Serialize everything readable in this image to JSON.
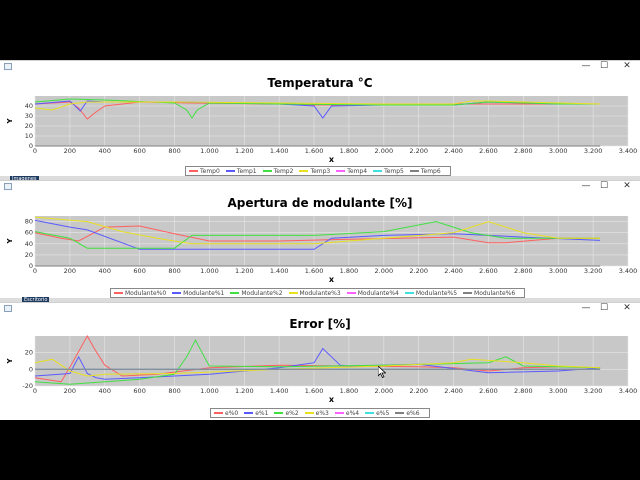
{
  "windows": [
    {
      "title": "Temperatura °C"
    },
    {
      "title": "Apertura de modulante [%]"
    },
    {
      "title": "Error [%]"
    }
  ],
  "window_buttons": {
    "minimize": "—",
    "maximize": "☐",
    "close": "✕"
  },
  "taskbar": {
    "label1": "Imagenes",
    "label2": "Escritorio"
  },
  "chart_data": [
    {
      "type": "line",
      "title": "Temperatura °C",
      "xlabel": "x",
      "ylabel": "Y",
      "xlim": [
        0,
        3400
      ],
      "ylim": [
        0,
        50
      ],
      "xticks": [
        "0",
        "200",
        "400",
        "600",
        "800",
        "1.000",
        "1.200",
        "1.400",
        "1.600",
        "1.800",
        "2.000",
        "2.200",
        "2.400",
        "2.600",
        "2.800",
        "3.000",
        "3.200",
        "3.400"
      ],
      "yticks": [
        "0",
        "10",
        "20",
        "30",
        "40"
      ],
      "grid": true,
      "legend_position": "bottom",
      "series": [
        {
          "name": "Temp0",
          "color": "#ff6060",
          "x": [
            0,
            200,
            250,
            300,
            350,
            400,
            600,
            900,
            1400,
            1600,
            2000,
            2400,
            2600,
            3000,
            3240
          ],
          "y": [
            42,
            44,
            38,
            27,
            34,
            40,
            44,
            43,
            42,
            41,
            41,
            42,
            42,
            42,
            42
          ]
        },
        {
          "name": "Temp1",
          "color": "#5a5aff",
          "x": [
            0,
            200,
            260,
            300,
            400,
            800,
            1400,
            1600,
            1650,
            1700,
            2000,
            2400,
            2600,
            3000,
            3240
          ],
          "y": [
            42,
            45,
            35,
            45,
            44,
            44,
            42,
            40,
            28,
            40,
            41,
            41,
            44,
            42,
            42
          ]
        },
        {
          "name": "Temp2",
          "color": "#40e040",
          "x": [
            0,
            200,
            400,
            800,
            870,
            900,
            930,
            1000,
            1400,
            2000,
            2400,
            2600,
            3000,
            3240
          ],
          "y": [
            44,
            47,
            46,
            43,
            36,
            28,
            36,
            43,
            42,
            41,
            41,
            44,
            42,
            42
          ]
        },
        {
          "name": "Temp3",
          "color": "#e8e020",
          "x": [
            0,
            100,
            200,
            300,
            400,
            800,
            1400,
            2000,
            2400,
            2500,
            2600,
            3000,
            3240
          ],
          "y": [
            38,
            36,
            42,
            44,
            44,
            44,
            43,
            42,
            42,
            45,
            45,
            43,
            42
          ]
        },
        {
          "name": "Temp4",
          "color": "#ff60ff",
          "x": [
            0,
            3240
          ],
          "y": [
            0,
            0
          ]
        },
        {
          "name": "Temp5",
          "color": "#40e0e0",
          "x": [
            0,
            3240
          ],
          "y": [
            0,
            0
          ]
        },
        {
          "name": "Temp6",
          "color": "#808080",
          "x": [
            0,
            3240
          ],
          "y": [
            0,
            0
          ]
        }
      ]
    },
    {
      "type": "line",
      "title": "Apertura de modulante [%]",
      "xlabel": "x",
      "ylabel": "Y",
      "xlim": [
        0,
        3400
      ],
      "ylim": [
        0,
        90
      ],
      "xticks": [
        "0",
        "200",
        "400",
        "600",
        "800",
        "1.000",
        "1.200",
        "1.400",
        "1.600",
        "1.800",
        "2.000",
        "2.200",
        "2.400",
        "2.600",
        "2.800",
        "3.000",
        "3.200",
        "3.400"
      ],
      "yticks": [
        "0",
        "20",
        "40",
        "60",
        "80"
      ],
      "grid": true,
      "legend_position": "bottom",
      "series": [
        {
          "name": "Modulante%0",
          "color": "#ff6060",
          "x": [
            0,
            150,
            250,
            400,
            600,
            800,
            1000,
            1400,
            1800,
            2400,
            2600,
            2700,
            3000,
            3240
          ],
          "y": [
            60,
            50,
            45,
            70,
            72,
            58,
            45,
            45,
            48,
            52,
            42,
            42,
            50,
            50
          ]
        },
        {
          "name": "Modulante%1",
          "color": "#5a5aff",
          "x": [
            0,
            200,
            300,
            600,
            700,
            1600,
            1700,
            2000,
            2400,
            2800,
            3240
          ],
          "y": [
            82,
            70,
            65,
            30,
            30,
            30,
            50,
            55,
            58,
            52,
            46
          ]
        },
        {
          "name": "Modulante%2",
          "color": "#40e040",
          "x": [
            0,
            200,
            300,
            800,
            900,
            1600,
            2000,
            2300,
            2500,
            2700,
            3240
          ],
          "y": [
            62,
            50,
            32,
            32,
            55,
            55,
            62,
            80,
            60,
            50,
            50
          ]
        },
        {
          "name": "Modulante%3",
          "color": "#e8e020",
          "x": [
            0,
            300,
            500,
            700,
            900,
            1600,
            2000,
            2400,
            2600,
            2800,
            3000,
            3240
          ],
          "y": [
            88,
            80,
            62,
            50,
            40,
            40,
            50,
            60,
            80,
            60,
            50,
            50
          ]
        },
        {
          "name": "Modulante%4",
          "color": "#ff60ff",
          "x": [
            0,
            3240
          ],
          "y": [
            0,
            0
          ]
        },
        {
          "name": "Modulante%5",
          "color": "#40e0e0",
          "x": [
            0,
            3240
          ],
          "y": [
            0,
            0
          ]
        },
        {
          "name": "Modulante%6",
          "color": "#808080",
          "x": [
            0,
            3240
          ],
          "y": [
            0,
            0
          ]
        }
      ]
    },
    {
      "type": "line",
      "title": "Error [%]",
      "xlabel": "x",
      "ylabel": "Y",
      "xlim": [
        0,
        3400
      ],
      "ylim": [
        -20,
        40
      ],
      "xticks": [
        "0",
        "200",
        "400",
        "600",
        "800",
        "1.000",
        "1.200",
        "1.400",
        "1.600",
        "1.800",
        "2.000",
        "2.200",
        "2.400",
        "2.600",
        "2.800",
        "3.000",
        "3.200",
        "3.400"
      ],
      "yticks": [
        "-20",
        "0",
        "20"
      ],
      "grid": true,
      "legend_position": "bottom",
      "series": [
        {
          "name": "e%0",
          "color": "#ff6060",
          "x": [
            0,
            150,
            220,
            260,
            300,
            340,
            400,
            500,
            700,
            1000,
            1400,
            1800,
            2200,
            2400,
            2600,
            2800,
            3000,
            3240
          ],
          "y": [
            -10,
            -15,
            10,
            25,
            40,
            25,
            5,
            -8,
            -6,
            2,
            5,
            4,
            3,
            2,
            -2,
            2,
            3,
            2
          ]
        },
        {
          "name": "e%1",
          "color": "#5a5aff",
          "x": [
            0,
            200,
            250,
            300,
            350,
            400,
            600,
            1000,
            1400,
            1600,
            1650,
            1700,
            1750,
            1800,
            2200,
            2600,
            3000,
            3240
          ],
          "y": [
            -8,
            -5,
            15,
            -5,
            -10,
            -12,
            -10,
            -6,
            2,
            8,
            25,
            15,
            5,
            4,
            6,
            -4,
            -2,
            2
          ]
        },
        {
          "name": "e%2",
          "color": "#40e040",
          "x": [
            0,
            200,
            600,
            800,
            870,
            920,
            970,
            1000,
            1400,
            2000,
            2600,
            2700,
            2800,
            3240
          ],
          "y": [
            -15,
            -18,
            -12,
            -6,
            15,
            35,
            15,
            4,
            3,
            5,
            8,
            15,
            4,
            2
          ]
        },
        {
          "name": "e%3",
          "color": "#e8e020",
          "x": [
            0,
            100,
            200,
            300,
            400,
            800,
            1400,
            2000,
            2400,
            2500,
            2800,
            3000,
            3240
          ],
          "y": [
            8,
            12,
            -2,
            -8,
            -6,
            -5,
            0,
            4,
            8,
            12,
            8,
            4,
            2
          ]
        },
        {
          "name": "e%4",
          "color": "#ff60ff",
          "x": [
            0,
            3240
          ],
          "y": [
            0,
            0
          ]
        },
        {
          "name": "e%5",
          "color": "#40e0e0",
          "x": [
            0,
            3240
          ],
          "y": [
            0,
            0
          ]
        },
        {
          "name": "e%6",
          "color": "#808080",
          "x": [
            0,
            3240
          ],
          "y": [
            0,
            0
          ]
        }
      ]
    }
  ]
}
